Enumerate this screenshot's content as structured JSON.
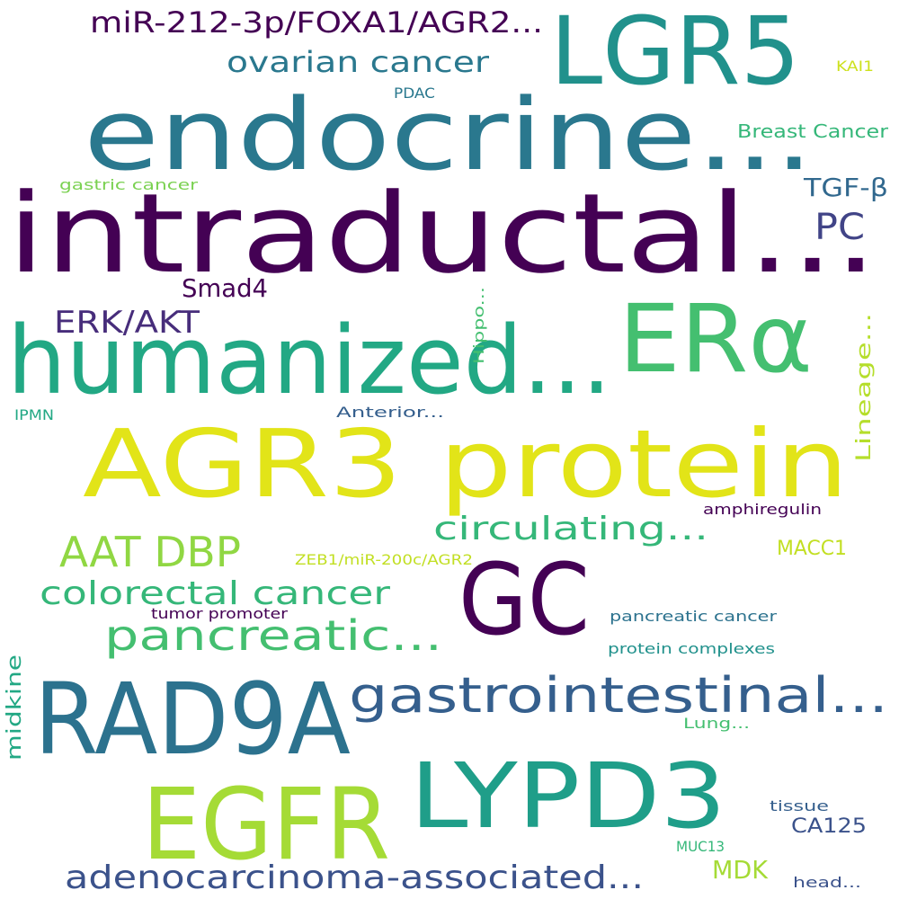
{
  "words": [
    {
      "text": "LGR5",
      "color": "#21918c"
    },
    {
      "text": "endocrine...",
      "color": "#2a788e"
    },
    {
      "text": "intraductal...",
      "color": "#440154"
    },
    {
      "text": "humanized...",
      "color": "#22a884"
    },
    {
      "text": "ERα",
      "color": "#44bf70"
    },
    {
      "text": "AGR3 protein",
      "color": "#e2e418"
    },
    {
      "text": "GC",
      "color": "#440154"
    },
    {
      "text": "RAD9A",
      "color": "#2c728e"
    },
    {
      "text": "EGFR",
      "color": "#a5db36"
    },
    {
      "text": "LYPD3",
      "color": "#1f9e89"
    },
    {
      "text": "gastrointestinal...",
      "color": "#355f8d"
    },
    {
      "text": "adenocarcinoma-associated...",
      "color": "#3b528b"
    },
    {
      "text": "pancreatic...",
      "color": "#44bf70"
    },
    {
      "text": "colorectal cancer",
      "color": "#35b779"
    },
    {
      "text": "AAT DBP",
      "color": "#90d743"
    },
    {
      "text": "circulating...",
      "color": "#35b779"
    },
    {
      "text": "miR-212-3p/FOXA1/AGR2...",
      "color": "#440154"
    },
    {
      "text": "ovarian cancer",
      "color": "#2a788e"
    },
    {
      "text": "PC",
      "color": "#414487"
    },
    {
      "text": "TGF-β",
      "color": "#31688e"
    },
    {
      "text": "ERK/AKT",
      "color": "#472d7b"
    },
    {
      "text": "Smad4",
      "color": "#440154"
    },
    {
      "text": "Breast Cancer",
      "color": "#35b779"
    },
    {
      "text": "PDAC",
      "color": "#2a788e"
    },
    {
      "text": "KAI1",
      "color": "#cde11d"
    },
    {
      "text": "gastric cancer",
      "color": "#7ad151"
    },
    {
      "text": "Hippo...",
      "color": "#44bf70"
    },
    {
      "text": "Lineage...",
      "color": "#b5de2b"
    },
    {
      "text": "IPMN",
      "color": "#22a884"
    },
    {
      "text": "Anterior...",
      "color": "#355f8d"
    },
    {
      "text": "amphiregulin",
      "color": "#440154"
    },
    {
      "text": "MACC1",
      "color": "#c2df23"
    },
    {
      "text": "ZEB1/miR-200c/AGR2",
      "color": "#c2df23"
    },
    {
      "text": "tumor promoter",
      "color": "#440154"
    },
    {
      "text": "pancreatic cancer",
      "color": "#2c728e"
    },
    {
      "text": "protein complexes",
      "color": "#21918c"
    },
    {
      "text": "midkine",
      "color": "#22a884"
    },
    {
      "text": "Lung...",
      "color": "#44bf70"
    },
    {
      "text": "tissue",
      "color": "#355f8d"
    },
    {
      "text": "CA125",
      "color": "#3b528b"
    },
    {
      "text": "MUC13",
      "color": "#35b779"
    },
    {
      "text": "MDK",
      "color": "#a5db36"
    },
    {
      "text": "head...",
      "color": "#3b528b"
    }
  ]
}
